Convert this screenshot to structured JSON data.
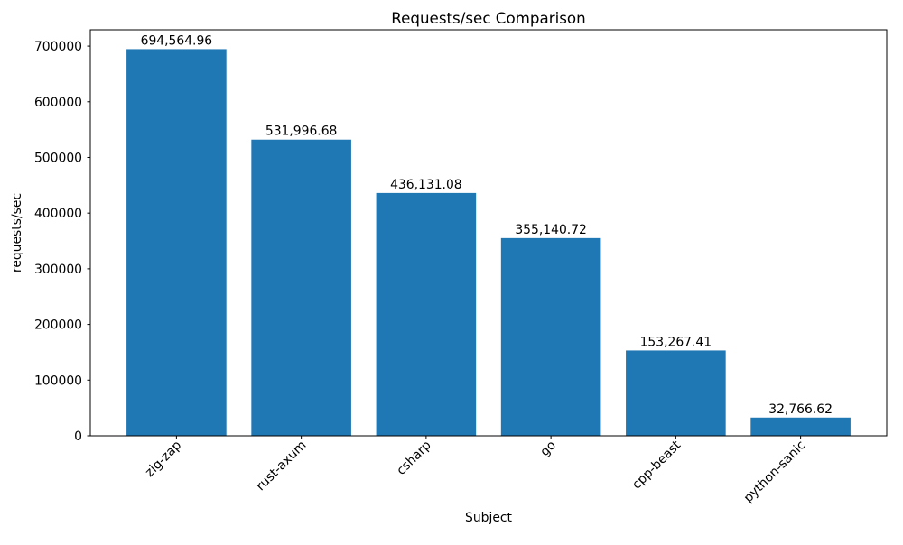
{
  "chart_data": {
    "type": "bar",
    "title": "Requests/sec Comparison",
    "xlabel": "Subject",
    "ylabel": "requests/sec",
    "categories": [
      "zig-zap",
      "rust-axum",
      "csharp",
      "go",
      "cpp-beast",
      "python-sanic"
    ],
    "values": [
      694564.96,
      531996.68,
      436131.08,
      355140.72,
      153267.41,
      32766.62
    ],
    "bar_labels": [
      "694,564.96",
      "531,996.68",
      "436,131.08",
      "355,140.72",
      "153,267.41",
      "32,766.62"
    ],
    "yticks": [
      0,
      100000,
      200000,
      300000,
      400000,
      500000,
      600000,
      700000
    ],
    "ylim": [
      0,
      729293
    ],
    "bar_color": "#1f77b4",
    "x_tick_rotation": 45,
    "grid": false,
    "legend": "none"
  }
}
